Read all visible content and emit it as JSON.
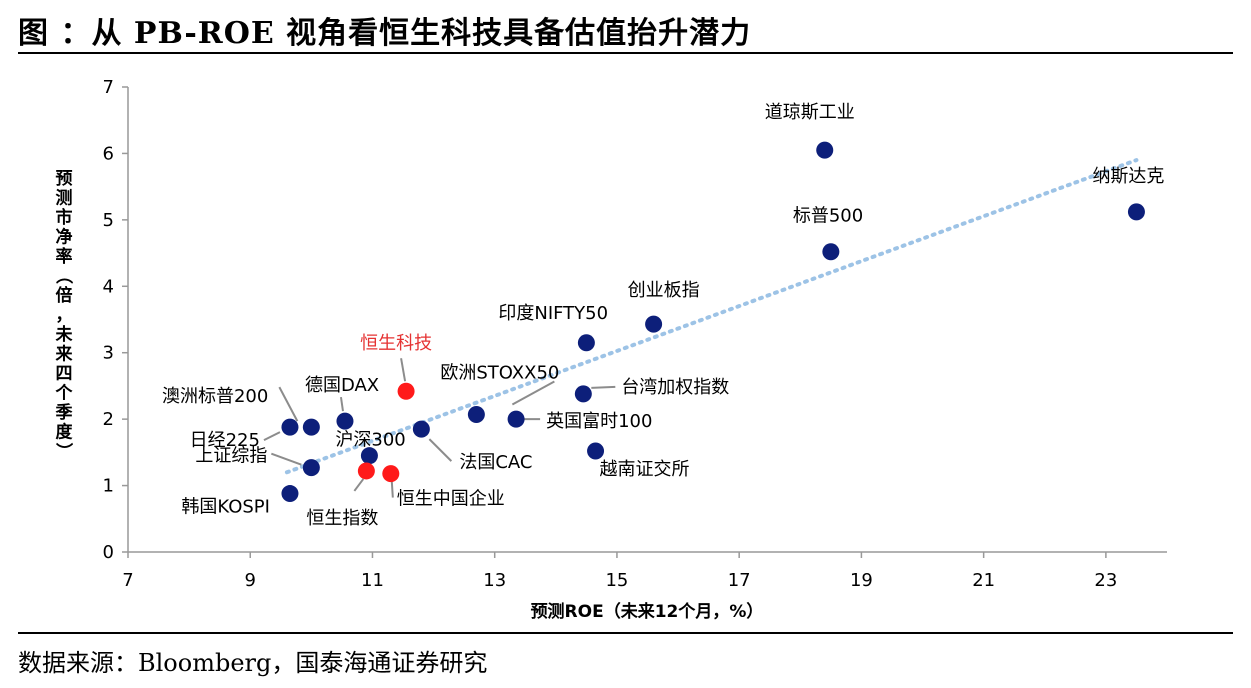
{
  "title": "图 ：从 PB-ROE 视角看恒生科技具备估值抬升潜力",
  "source": "数据来源：Bloomberg，国泰海通证券研究",
  "chart_data": {
    "type": "scatter",
    "title": "图 ：从 PB-ROE 视角看恒生科技具备估值抬升潜力",
    "xlabel": "预测ROE（未来12个月，%）",
    "ylabel": "预测市净率（倍，未来四个季度）",
    "xlim": [
      7,
      24
    ],
    "ylim": [
      0,
      7
    ],
    "x_ticks": [
      "7",
      "9",
      "11",
      "13",
      "15",
      "17",
      "19",
      "21",
      "23"
    ],
    "y_ticks": [
      "0",
      "1",
      "2",
      "3",
      "4",
      "5",
      "6",
      "7"
    ],
    "grid": false,
    "trendline": {
      "style": "dotted",
      "color": "#9dc3e6",
      "from": [
        9.6,
        1.2
      ],
      "to": [
        23.5,
        5.9
      ]
    },
    "colors": {
      "default": "#0d1f7a",
      "highlight": "#ff1a1a",
      "highlight_label": "#e53333"
    },
    "points": [
      {
        "name": "道琼斯工业",
        "x": 18.4,
        "y": 6.05,
        "highlight": false
      },
      {
        "name": "纳斯达克",
        "x": 23.5,
        "y": 5.12,
        "highlight": false
      },
      {
        "name": "标普500",
        "x": 18.5,
        "y": 4.52,
        "highlight": false
      },
      {
        "name": "创业板指",
        "x": 15.6,
        "y": 3.43,
        "highlight": false
      },
      {
        "name": "印度NIFTY50",
        "x": 14.5,
        "y": 3.15,
        "highlight": false
      },
      {
        "name": "恒生科技",
        "x": 11.55,
        "y": 2.42,
        "highlight": true
      },
      {
        "name": "台湾加权指数",
        "x": 14.45,
        "y": 2.38,
        "highlight": false
      },
      {
        "name": "欧洲STOXX50",
        "x": 12.7,
        "y": 2.07,
        "highlight": false
      },
      {
        "name": "英国富时100",
        "x": 13.35,
        "y": 2.0,
        "highlight": false
      },
      {
        "name": "德国DAX",
        "x": 10.55,
        "y": 1.97,
        "highlight": false
      },
      {
        "name": "澳洲标普200",
        "x": 10.0,
        "y": 1.88,
        "highlight": false
      },
      {
        "name": "日经225",
        "x": 9.65,
        "y": 1.88,
        "highlight": false
      },
      {
        "name": "法国CAC",
        "x": 11.8,
        "y": 1.85,
        "highlight": false
      },
      {
        "name": "越南证交所",
        "x": 14.65,
        "y": 1.52,
        "highlight": false
      },
      {
        "name": "沪深300",
        "x": 10.95,
        "y": 1.45,
        "highlight": false
      },
      {
        "name": "上证综指",
        "x": 10.0,
        "y": 1.27,
        "highlight": false
      },
      {
        "name": "恒生指数",
        "x": 10.9,
        "y": 1.22,
        "highlight": true
      },
      {
        "name": "恒生中国企业",
        "x": 11.3,
        "y": 1.18,
        "highlight": true
      },
      {
        "name": "韩国KOSPI",
        "x": 9.65,
        "y": 0.88,
        "highlight": false
      }
    ]
  }
}
